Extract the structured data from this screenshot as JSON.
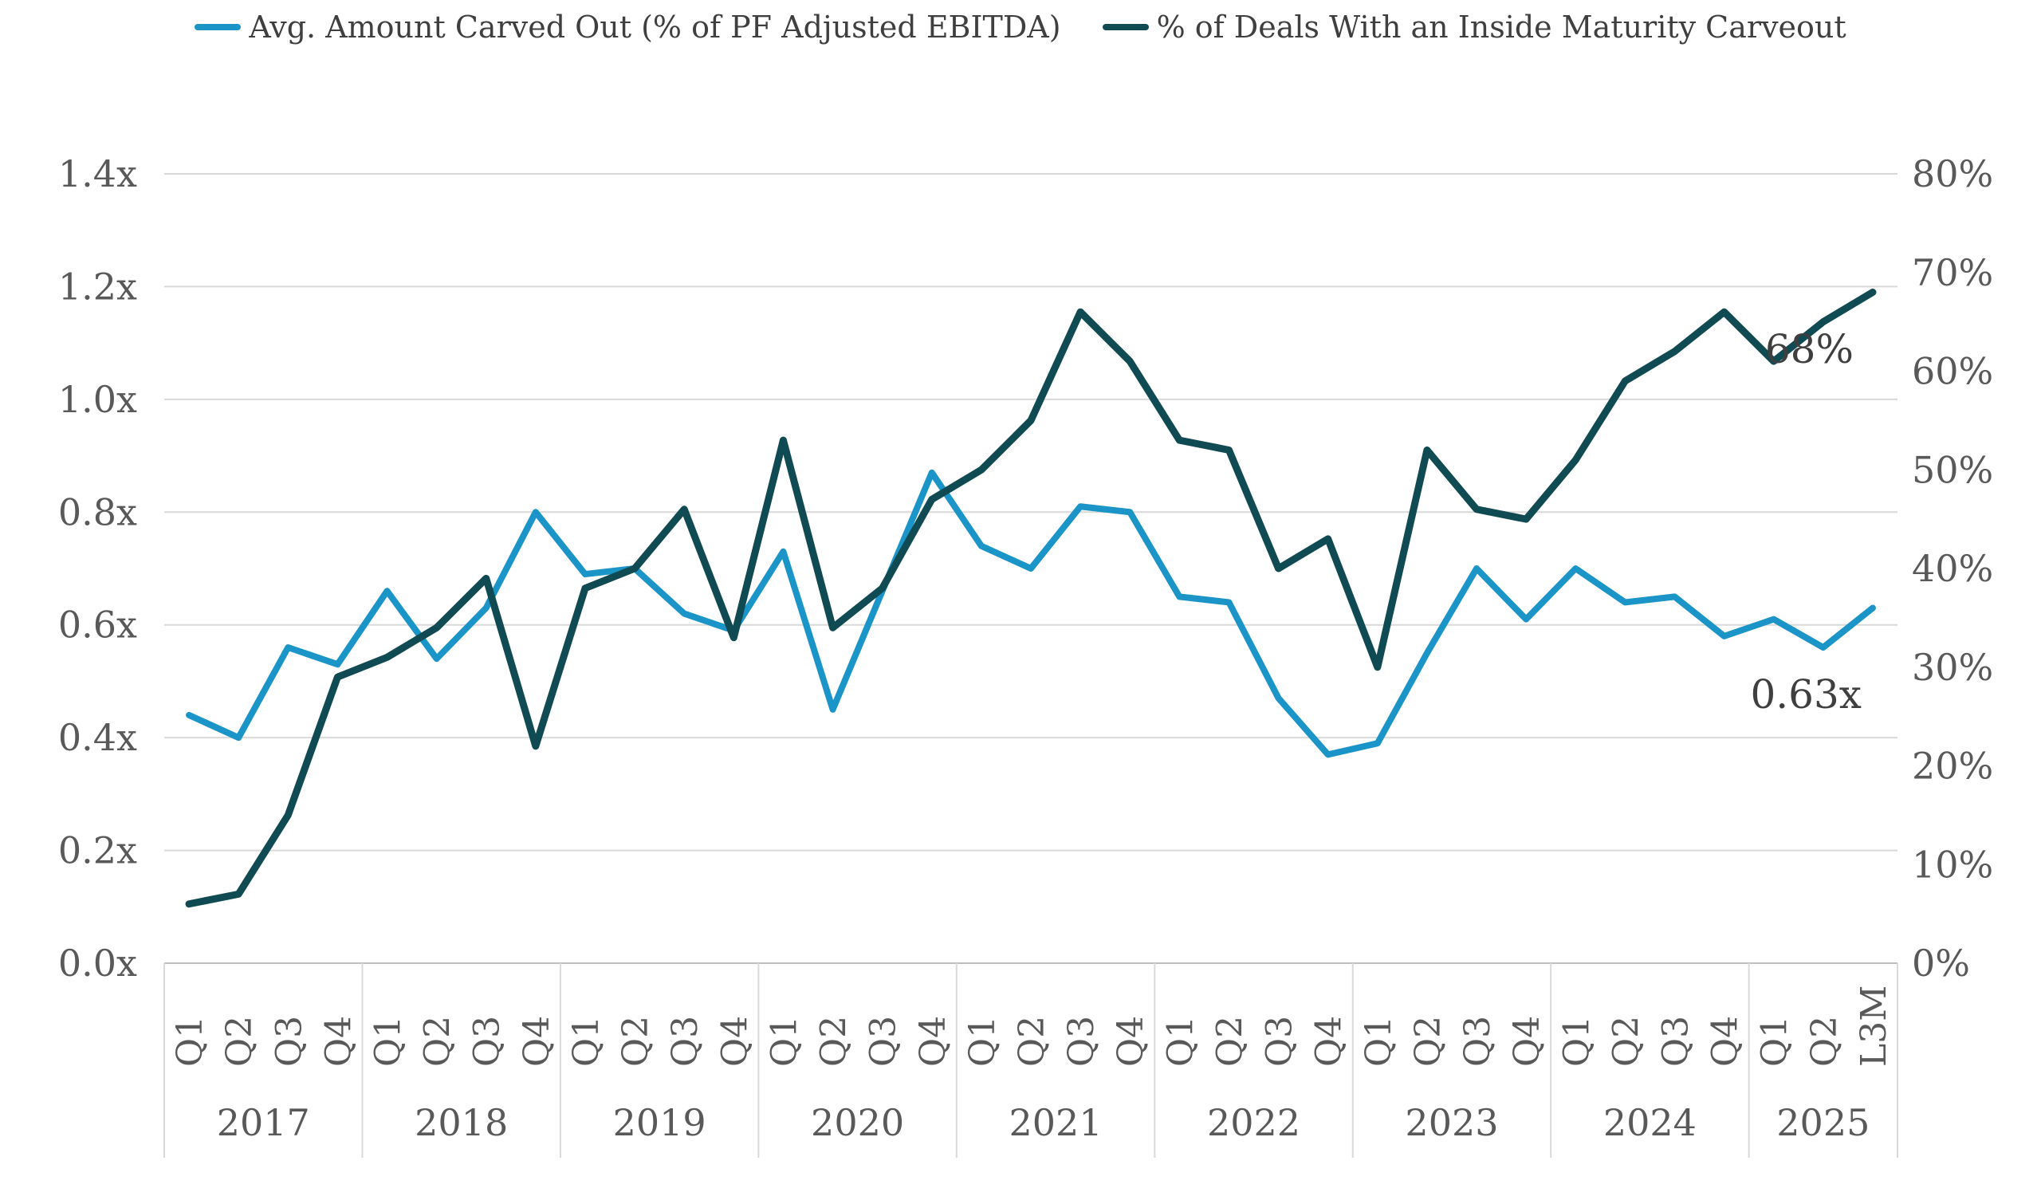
{
  "chart_data": {
    "type": "line",
    "title": "",
    "legend_position": "top",
    "grid": "horizontal-left-axis-only",
    "background": "#ffffff",
    "grid_color": "#d9d9d9",
    "axis_line_color": "#bfbfbf",
    "label_color": "#595959",
    "annotation_color": "#3f3f3f",
    "categories": [
      "Q1",
      "Q2",
      "Q3",
      "Q4",
      "Q1",
      "Q2",
      "Q3",
      "Q4",
      "Q1",
      "Q2",
      "Q3",
      "Q4",
      "Q1",
      "Q2",
      "Q3",
      "Q4",
      "Q1",
      "Q2",
      "Q3",
      "Q4",
      "Q1",
      "Q2",
      "Q3",
      "Q4",
      "Q1",
      "Q2",
      "Q3",
      "Q4",
      "Q1",
      "Q2",
      "Q3",
      "Q4",
      "Q1",
      "Q2",
      "L3M"
    ],
    "year_groups": [
      {
        "label": "2017",
        "count": 4
      },
      {
        "label": "2018",
        "count": 4
      },
      {
        "label": "2019",
        "count": 4
      },
      {
        "label": "2020",
        "count": 4
      },
      {
        "label": "2021",
        "count": 4
      },
      {
        "label": "2022",
        "count": 4
      },
      {
        "label": "2023",
        "count": 4
      },
      {
        "label": "2024",
        "count": 4
      },
      {
        "label": "2025",
        "count": 3
      }
    ],
    "series": [
      {
        "name": "Avg. Amount Carved Out (% of PF Adjusted EBITDA)",
        "axis": "left",
        "color": "#1b94c8",
        "stroke_width": 8,
        "values": [
          0.44,
          0.4,
          0.56,
          0.53,
          0.66,
          0.54,
          0.63,
          0.8,
          0.69,
          0.7,
          0.62,
          0.59,
          0.73,
          0.45,
          0.66,
          0.87,
          0.74,
          0.7,
          0.81,
          0.8,
          0.65,
          0.64,
          0.47,
          0.37,
          0.39,
          0.55,
          0.7,
          0.61,
          0.7,
          0.64,
          0.65,
          0.58,
          0.61,
          0.56,
          0.63
        ]
      },
      {
        "name": "% of Deals With an Inside Maturity Carveout",
        "axis": "right",
        "color": "#104a52",
        "stroke_width": 9,
        "values": [
          6,
          7,
          15,
          29,
          31,
          34,
          39,
          22,
          38,
          40,
          46,
          33,
          53,
          34,
          38,
          47,
          50,
          55,
          66,
          61,
          53,
          52,
          40,
          43,
          30,
          52,
          46,
          45,
          51,
          59,
          62,
          66,
          61,
          65,
          68
        ]
      }
    ],
    "left_axis": {
      "min": 0,
      "max": 1.4,
      "step": 0.2,
      "ticks": [
        "0.0x",
        "0.2x",
        "0.4x",
        "0.6x",
        "0.8x",
        "1.0x",
        "1.2x",
        "1.4x"
      ]
    },
    "right_axis": {
      "min": 0,
      "max": 80,
      "step": 10,
      "ticks": [
        "0%",
        "10%",
        "20%",
        "30%",
        "40%",
        "50%",
        "60%",
        "70%",
        "80%"
      ]
    },
    "annotations": [
      {
        "text": "68%",
        "x": 2325,
        "y": 455,
        "anchor": "end",
        "font_size": 50
      },
      {
        "text": "0.63x",
        "x": 2335,
        "y": 888,
        "anchor": "end",
        "font_size": 50
      }
    ],
    "layout": {
      "plot_left": 206,
      "plot_right": 2380,
      "plot_top": 218,
      "plot_bottom": 1208,
      "left_label_x": 172,
      "right_label_x": 2398,
      "quarter_label_y": 1338,
      "year_label_y": 1424,
      "separator_bottom": 1452,
      "axis_font_size": 46,
      "quarter_font_size": 44,
      "year_font_size": 46
    }
  },
  "legend": {
    "item1_label": "Avg. Amount Carved Out (% of PF Adjusted EBITDA)",
    "item2_label": "% of Deals With an Inside Maturity Carveout"
  }
}
